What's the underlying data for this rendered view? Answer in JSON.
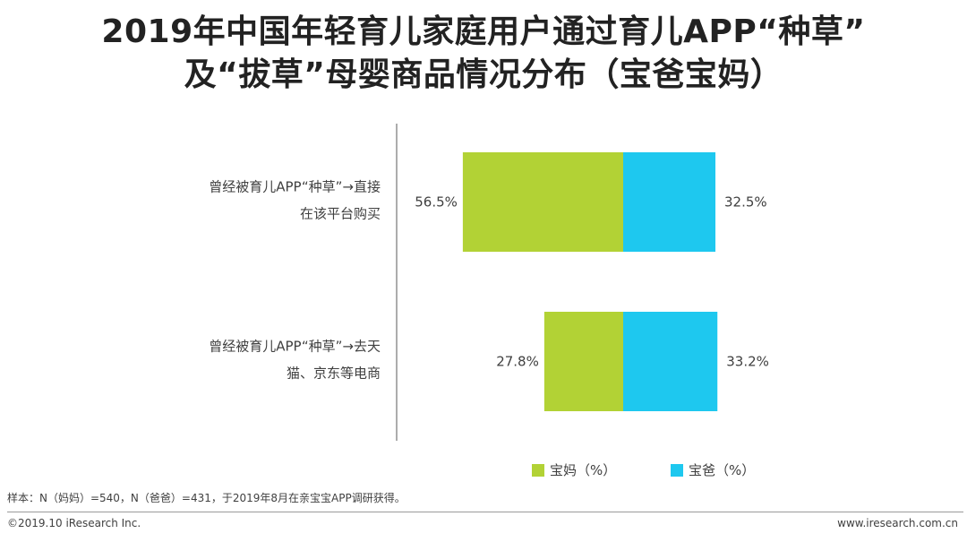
{
  "title": {
    "line1": "2019年中国年轻育儿家庭用户通过育儿APP“种草”",
    "line2": "及“拔草”母婴商品情况分布（宝爸宝妈）"
  },
  "colors": {
    "mom": "#b2d235",
    "dad": "#1ec8ef",
    "axis": "#595959"
  },
  "chart_data": {
    "type": "bar",
    "orientation": "horizontal-diverging",
    "categories": [
      [
        "曾经被育儿APP“种草”→直接",
        "在该平台购买"
      ],
      [
        "曾经被育儿APP“种草”→去天",
        "猫、京东等电商"
      ]
    ],
    "series": [
      {
        "name": "宝妈（%）",
        "values": [
          56.5,
          27.8
        ],
        "labels": [
          "56.5%",
          "27.8%"
        ]
      },
      {
        "name": "宝爸（%）",
        "values": [
          32.5,
          33.2
        ],
        "labels": [
          "32.5%",
          "33.2%"
        ]
      }
    ],
    "unit": "%",
    "legend_position": "bottom"
  },
  "footer": {
    "note": "样本：N（妈妈）=540，N（爸爸）=431，于2019年8月在亲宝宝APP调研获得。",
    "copyright": "©2019.10 iResearch Inc.",
    "website": "www.iresearch.com.cn"
  }
}
